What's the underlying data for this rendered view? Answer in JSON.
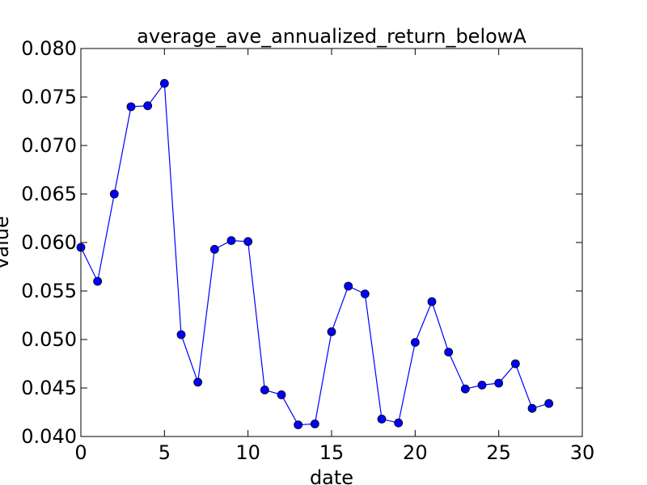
{
  "chart_data": {
    "type": "line",
    "title": "average_ave_annualized_return_belowA",
    "xlabel": "date",
    "ylabel": "value",
    "xlim": [
      0,
      30
    ],
    "ylim": [
      0.04,
      0.08
    ],
    "xticks": [
      0,
      5,
      10,
      15,
      20,
      25,
      30
    ],
    "yticks": [
      0.04,
      0.045,
      0.05,
      0.055,
      0.06,
      0.065,
      0.07,
      0.075,
      0.08
    ],
    "xtick_labels": [
      "0",
      "5",
      "10",
      "15",
      "20",
      "25",
      "30"
    ],
    "ytick_labels": [
      "0.040",
      "0.045",
      "0.050",
      "0.055",
      "0.060",
      "0.065",
      "0.070",
      "0.075",
      "0.080"
    ],
    "grid": false,
    "line_color": "#0000ff",
    "marker_color": "#0000ff",
    "series": [
      {
        "x": [
          0,
          1,
          2,
          3,
          4,
          5,
          6,
          7,
          8,
          9,
          10,
          11,
          12,
          13,
          14,
          15,
          16,
          17,
          18,
          19,
          20,
          21,
          22,
          23,
          24,
          25,
          26,
          27,
          28
        ],
        "values": [
          0.0595,
          0.056,
          0.065,
          0.074,
          0.0741,
          0.0764,
          0.0505,
          0.0456,
          0.0593,
          0.0602,
          0.0601,
          0.0448,
          0.0443,
          0.0412,
          0.0413,
          0.0508,
          0.0555,
          0.0547,
          0.0418,
          0.0414,
          0.0497,
          0.0539,
          0.0487,
          0.0449,
          0.0453,
          0.0455,
          0.0475,
          0.0429,
          0.0434
        ]
      }
    ]
  }
}
